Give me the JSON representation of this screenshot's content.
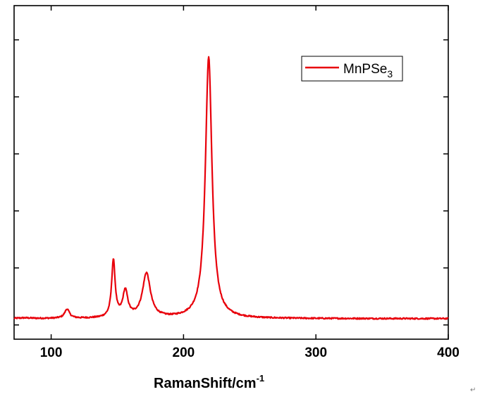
{
  "chart_data": {
    "type": "line",
    "title": "",
    "xlabel": "RamanShift/cm",
    "xlabel_superscript": "-1",
    "ylabel": "",
    "xlim": [
      72,
      400
    ],
    "ylim": [
      -0.25,
      5.6
    ],
    "x_ticks": [
      100,
      200,
      300,
      400
    ],
    "x_tick_labels": [
      "100",
      "200",
      "300",
      "400"
    ],
    "y_ticks": [
      0,
      1,
      2,
      3,
      4,
      5
    ],
    "y_tick_labels_visible": false,
    "grid": false,
    "legend_position": "top-right",
    "series": [
      {
        "name": "MnPSe",
        "name_subscript": "3",
        "color": "#e8000b",
        "baseline": 0.11,
        "peaks": [
          {
            "center": 80,
            "height": 0.01,
            "width": 6
          },
          {
            "center": 112,
            "height": 0.16,
            "width": 2.2
          },
          {
            "center": 147,
            "height": 1.0,
            "width": 1.6
          },
          {
            "center": 156,
            "height": 0.46,
            "width": 2.3
          },
          {
            "center": 172,
            "height": 0.78,
            "width": 3.6
          },
          {
            "center": 219,
            "height": 4.58,
            "width": 3.0
          }
        ],
        "noise_amplitude": 0.012
      }
    ]
  },
  "footer": {
    "mark": "↵"
  }
}
